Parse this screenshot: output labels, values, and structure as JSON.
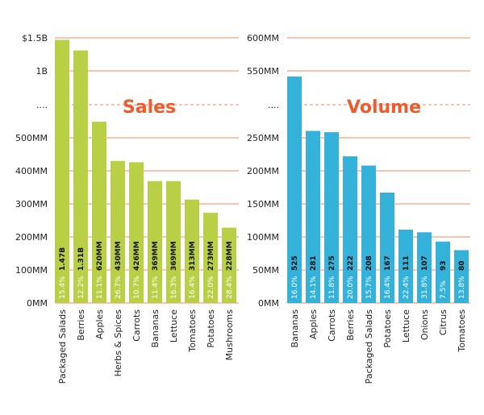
{
  "colors": {
    "sales_bar": "#b9cf45",
    "volume_bar": "#35b2d9",
    "gridline": "#f08a6a",
    "title": "#f15a2b"
  },
  "chart_data": [
    {
      "type": "bar",
      "title": "Sales",
      "y_tick_labels": [
        "0MM",
        "100MM",
        "200MM",
        "300MM",
        "400MM",
        "500MM",
        "....",
        "1B",
        "$1.5B"
      ],
      "y_scale": "broken",
      "categories": [
        "Packaged Salads",
        "Berries",
        "Apples",
        "Herbs & Spices",
        "Carrots",
        "Bananas",
        "Lettuce",
        "Tomatoes",
        "Potatoes",
        "Mushrooms"
      ],
      "values": [
        1470,
        1310,
        620,
        430,
        426,
        369,
        369,
        313,
        273,
        228
      ],
      "value_labels": [
        "1.47B",
        "1.31B",
        "620MM",
        "430MM",
        "426MM",
        "369MM",
        "369MM",
        "313MM",
        "273MM",
        "228MM"
      ],
      "pct_labels": [
        "15.4%",
        "12.2%",
        "11.1%",
        "26.7%",
        "10.7%",
        "11.4%",
        "16.3%",
        "16.4%",
        "22.0%",
        "28.4%"
      ],
      "grid": true
    },
    {
      "type": "bar",
      "title": "Volume",
      "y_tick_labels": [
        "0MM",
        "50MM",
        "100MM",
        "150MM",
        "200MM",
        "250MM",
        "....",
        "550MM",
        "600MM"
      ],
      "y_scale": "broken",
      "categories": [
        "Bananas",
        "Apples",
        "Carrots",
        "Berries",
        "Packaged Salads",
        "Potatoes",
        "Lettuce",
        "Onions",
        "Citrus",
        "Tomatoes"
      ],
      "values": [
        525,
        281,
        275,
        222,
        208,
        167,
        111,
        107,
        93,
        80
      ],
      "value_labels": [
        "525",
        "281",
        "275",
        "222",
        "208",
        "167",
        "111",
        "107",
        "93",
        "80"
      ],
      "pct_labels": [
        "16.0%",
        "14.1%",
        "11.8%",
        "20.0%",
        "15.7%",
        "16.4%",
        "22.4%",
        "31.8%",
        "7.5%",
        "13.8%"
      ],
      "grid": true
    }
  ]
}
